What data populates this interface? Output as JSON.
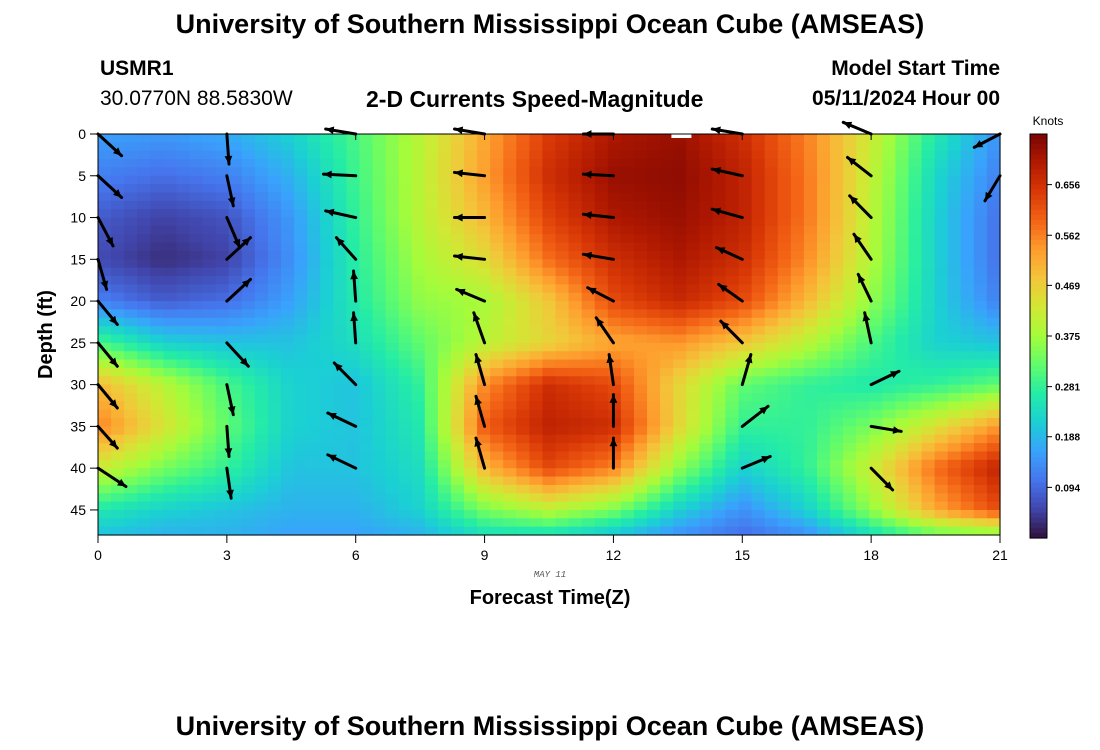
{
  "header": {
    "title": "University of Southern Mississippi Ocean Cube (AMSEAS)",
    "station": "USMR1",
    "coords": "30.0770N  88.5830W",
    "subtitle": "2-D Currents Speed-Magnitude",
    "model_start_label": "Model Start Time",
    "model_start_value": "05/11/2024 Hour 00"
  },
  "footer": {
    "title": "University of Southern Mississippi Ocean Cube (AMSEAS)"
  },
  "chart_data": {
    "type": "heatmap",
    "title": "2-D Currents Speed-Magnitude",
    "xlabel": "Forecast Time(Z)",
    "ylabel": "Depth (ft)",
    "date_label": "MAY 11",
    "xlim": [
      0,
      21
    ],
    "ylim": [
      0,
      48
    ],
    "xticks": [
      0,
      3,
      6,
      9,
      12,
      15,
      18,
      21
    ],
    "yticks": [
      0,
      5,
      10,
      15,
      20,
      25,
      30,
      35,
      40,
      45
    ],
    "colorbar": {
      "label": "Knots",
      "range": [
        0.0,
        0.75
      ],
      "ticks": [
        "0.656",
        "0.562",
        "0.469",
        "0.375",
        "0.281",
        "0.188",
        "0.094"
      ],
      "tick_values": [
        0.656,
        0.562,
        0.469,
        0.375,
        0.281,
        0.188,
        0.094
      ]
    },
    "color_scale": [
      "#30123b",
      "#4145ab",
      "#4675ed",
      "#39a2fc",
      "#1bcfd4",
      "#24eca6",
      "#61fc6c",
      "#a4fc3b",
      "#d1e834",
      "#f3c63a",
      "#fe9b2d",
      "#f36315",
      "#d93806",
      "#b11901",
      "#7a0402"
    ],
    "speed_grid": {
      "times": [
        0,
        1.5,
        3,
        4.5,
        6,
        7.5,
        9,
        10.5,
        12,
        13.5,
        15,
        16.5,
        18,
        19.5,
        21
      ],
      "depths": [
        0,
        5,
        10,
        15,
        20,
        25,
        30,
        35,
        40,
        45,
        48
      ],
      "values": [
        [
          0.16,
          0.15,
          0.17,
          0.22,
          0.3,
          0.4,
          0.52,
          0.64,
          0.7,
          0.72,
          0.66,
          0.56,
          0.42,
          0.26,
          0.14
        ],
        [
          0.12,
          0.1,
          0.12,
          0.18,
          0.29,
          0.4,
          0.53,
          0.66,
          0.72,
          0.73,
          0.68,
          0.57,
          0.41,
          0.23,
          0.12
        ],
        [
          0.08,
          0.05,
          0.07,
          0.15,
          0.28,
          0.4,
          0.5,
          0.63,
          0.7,
          0.72,
          0.68,
          0.57,
          0.4,
          0.22,
          0.1
        ],
        [
          0.06,
          0.03,
          0.05,
          0.14,
          0.27,
          0.38,
          0.45,
          0.58,
          0.66,
          0.7,
          0.66,
          0.55,
          0.39,
          0.22,
          0.1
        ],
        [
          0.12,
          0.08,
          0.1,
          0.16,
          0.26,
          0.36,
          0.38,
          0.48,
          0.62,
          0.67,
          0.62,
          0.5,
          0.36,
          0.22,
          0.12
        ],
        [
          0.3,
          0.22,
          0.2,
          0.2,
          0.24,
          0.32,
          0.4,
          0.46,
          0.52,
          0.54,
          0.48,
          0.4,
          0.3,
          0.22,
          0.2
        ],
        [
          0.5,
          0.4,
          0.3,
          0.22,
          0.2,
          0.28,
          0.55,
          0.66,
          0.62,
          0.46,
          0.32,
          0.28,
          0.26,
          0.28,
          0.32
        ],
        [
          0.56,
          0.44,
          0.32,
          0.22,
          0.2,
          0.26,
          0.6,
          0.68,
          0.66,
          0.46,
          0.28,
          0.28,
          0.34,
          0.44,
          0.54
        ],
        [
          0.42,
          0.34,
          0.28,
          0.2,
          0.2,
          0.24,
          0.5,
          0.62,
          0.56,
          0.36,
          0.22,
          0.28,
          0.42,
          0.58,
          0.68
        ],
        [
          0.26,
          0.22,
          0.2,
          0.18,
          0.18,
          0.22,
          0.34,
          0.4,
          0.34,
          0.22,
          0.14,
          0.22,
          0.36,
          0.52,
          0.62
        ],
        [
          0.2,
          0.18,
          0.18,
          0.16,
          0.16,
          0.18,
          0.24,
          0.24,
          0.2,
          0.14,
          0.1,
          0.14,
          0.24,
          0.32,
          0.34
        ]
      ]
    },
    "vectors": [
      {
        "t": 0,
        "d": 0,
        "dx": 0.55,
        "dd": 2.6
      },
      {
        "t": 0,
        "d": 5,
        "dx": 0.55,
        "dd": 2.6
      },
      {
        "t": 0,
        "d": 10,
        "dx": 0.35,
        "dd": 3.4
      },
      {
        "t": 0,
        "d": 15,
        "dx": 0.2,
        "dd": 3.6
      },
      {
        "t": 0,
        "d": 20,
        "dx": 0.45,
        "dd": 2.8
      },
      {
        "t": 0,
        "d": 25,
        "dx": 0.45,
        "dd": 2.8
      },
      {
        "t": 0,
        "d": 30,
        "dx": 0.45,
        "dd": 2.8
      },
      {
        "t": 0,
        "d": 35,
        "dx": 0.45,
        "dd": 2.6
      },
      {
        "t": 0,
        "d": 40,
        "dx": 0.65,
        "dd": 2.2
      },
      {
        "t": 3,
        "d": 0,
        "dx": 0.05,
        "dd": 3.6
      },
      {
        "t": 3,
        "d": 5,
        "dx": 0.15,
        "dd": 3.6
      },
      {
        "t": 3,
        "d": 10,
        "dx": 0.3,
        "dd": 3.6
      },
      {
        "t": 3,
        "d": 15,
        "dx": 0.55,
        "dd": -2.6
      },
      {
        "t": 3,
        "d": 20,
        "dx": 0.55,
        "dd": -2.6
      },
      {
        "t": 3,
        "d": 25,
        "dx": 0.5,
        "dd": 2.8
      },
      {
        "t": 3,
        "d": 30,
        "dx": 0.15,
        "dd": 3.6
      },
      {
        "t": 3,
        "d": 35,
        "dx": 0.05,
        "dd": 3.6
      },
      {
        "t": 3,
        "d": 40,
        "dx": 0.1,
        "dd": 3.6
      },
      {
        "t": 6,
        "d": 0,
        "dx": -0.7,
        "dd": -0.6
      },
      {
        "t": 6,
        "d": 5,
        "dx": -0.75,
        "dd": -0.2
      },
      {
        "t": 6,
        "d": 10,
        "dx": -0.7,
        "dd": -0.8
      },
      {
        "t": 6,
        "d": 15,
        "dx": -0.45,
        "dd": -2.6
      },
      {
        "t": 6,
        "d": 20,
        "dx": -0.05,
        "dd": -3.6
      },
      {
        "t": 6,
        "d": 25,
        "dx": -0.05,
        "dd": -3.6
      },
      {
        "t": 6,
        "d": 30,
        "dx": -0.5,
        "dd": -2.6
      },
      {
        "t": 6,
        "d": 35,
        "dx": -0.65,
        "dd": -1.6
      },
      {
        "t": 6,
        "d": 40,
        "dx": -0.65,
        "dd": -1.6
      },
      {
        "t": 9,
        "d": 0,
        "dx": -0.7,
        "dd": -0.6
      },
      {
        "t": 9,
        "d": 5,
        "dx": -0.7,
        "dd": -0.4
      },
      {
        "t": 9,
        "d": 10,
        "dx": -0.7,
        "dd": 0.0
      },
      {
        "t": 9,
        "d": 15,
        "dx": -0.7,
        "dd": -0.4
      },
      {
        "t": 9,
        "d": 20,
        "dx": -0.65,
        "dd": -1.4
      },
      {
        "t": 9,
        "d": 25,
        "dx": -0.25,
        "dd": -3.6
      },
      {
        "t": 9,
        "d": 30,
        "dx": -0.2,
        "dd": -3.6
      },
      {
        "t": 9,
        "d": 35,
        "dx": -0.2,
        "dd": -3.6
      },
      {
        "t": 9,
        "d": 40,
        "dx": -0.2,
        "dd": -3.6
      },
      {
        "t": 12,
        "d": 0,
        "dx": -0.7,
        "dd": 0.0
      },
      {
        "t": 12,
        "d": 5,
        "dx": -0.7,
        "dd": -0.2
      },
      {
        "t": 12,
        "d": 10,
        "dx": -0.7,
        "dd": -0.4
      },
      {
        "t": 12,
        "d": 15,
        "dx": -0.7,
        "dd": -0.6
      },
      {
        "t": 12,
        "d": 20,
        "dx": -0.6,
        "dd": -1.6
      },
      {
        "t": 12,
        "d": 25,
        "dx": -0.4,
        "dd": -3.0
      },
      {
        "t": 12,
        "d": 30,
        "dx": -0.1,
        "dd": -3.6
      },
      {
        "t": 12,
        "d": 35,
        "dx": 0.0,
        "dd": -3.8
      },
      {
        "t": 12,
        "d": 40,
        "dx": 0.0,
        "dd": -3.6
      },
      {
        "t": 15,
        "d": 0,
        "dx": -0.7,
        "dd": -0.6
      },
      {
        "t": 15,
        "d": 5,
        "dx": -0.7,
        "dd": -0.8
      },
      {
        "t": 15,
        "d": 10,
        "dx": -0.7,
        "dd": -1.0
      },
      {
        "t": 15,
        "d": 15,
        "dx": -0.6,
        "dd": -1.4
      },
      {
        "t": 15,
        "d": 20,
        "dx": -0.55,
        "dd": -2.0
      },
      {
        "t": 15,
        "d": 25,
        "dx": -0.5,
        "dd": -2.6
      },
      {
        "t": 15,
        "d": 30,
        "dx": 0.2,
        "dd": -3.6
      },
      {
        "t": 15,
        "d": 35,
        "dx": 0.6,
        "dd": -2.4
      },
      {
        "t": 15,
        "d": 40,
        "dx": 0.65,
        "dd": -1.4
      },
      {
        "t": 18,
        "d": 0,
        "dx": -0.65,
        "dd": -1.4
      },
      {
        "t": 18,
        "d": 5,
        "dx": -0.55,
        "dd": -2.2
      },
      {
        "t": 18,
        "d": 10,
        "dx": -0.5,
        "dd": -2.6
      },
      {
        "t": 18,
        "d": 15,
        "dx": -0.4,
        "dd": -3.0
      },
      {
        "t": 18,
        "d": 20,
        "dx": -0.3,
        "dd": -3.2
      },
      {
        "t": 18,
        "d": 25,
        "dx": -0.15,
        "dd": -3.6
      },
      {
        "t": 18,
        "d": 30,
        "dx": 0.65,
        "dd": -1.6
      },
      {
        "t": 18,
        "d": 35,
        "dx": 0.7,
        "dd": 0.6
      },
      {
        "t": 18,
        "d": 40,
        "dx": 0.5,
        "dd": 2.6
      },
      {
        "t": 21,
        "d": 0,
        "dx": -0.6,
        "dd": 1.6
      },
      {
        "t": 21,
        "d": 5,
        "dx": -0.35,
        "dd": 3.0
      }
    ]
  }
}
